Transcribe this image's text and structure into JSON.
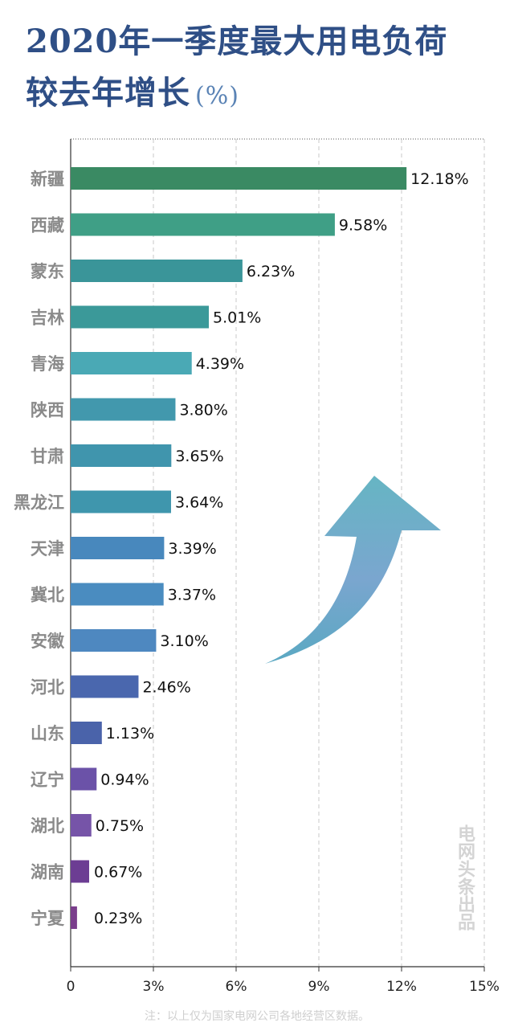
{
  "title_line1": "2020年一季度最大用电负荷",
  "title_line2": "较去年增长",
  "title_unit": "(%)",
  "note": "注：以上仅为国家电网公司各地经营区数据。",
  "watermark": "电网头条出品",
  "chart_data": {
    "type": "bar",
    "orientation": "horizontal",
    "categories": [
      "新疆",
      "西藏",
      "蒙东",
      "吉林",
      "青海",
      "陕西",
      "甘肃",
      "黑龙江",
      "天津",
      "冀北",
      "安徽",
      "河北",
      "山东",
      "辽宁",
      "湖北",
      "湖南",
      "宁夏"
    ],
    "values": [
      12.18,
      9.58,
      6.23,
      5.01,
      4.39,
      3.8,
      3.65,
      3.64,
      3.39,
      3.37,
      3.1,
      2.46,
      1.13,
      0.94,
      0.75,
      0.67,
      0.23
    ],
    "value_labels": [
      "12.18%",
      "9.58%",
      "6.23%",
      "5.01%",
      "4.39%",
      "3.80%",
      "3.65%",
      "3.64%",
      "3.39%",
      "3.37%",
      "3.10%",
      "2.46%",
      "1.13%",
      "0.94%",
      "0.75%",
      "0.67%",
      "0.23%"
    ],
    "bar_colors": [
      "#3a8a63",
      "#3f9f86",
      "#3a9599",
      "#3b9999",
      "#4aa9b5",
      "#4298ad",
      "#4095ad",
      "#3f96ad",
      "#4888bd",
      "#4a8cc0",
      "#4e88c0",
      "#4a67ae",
      "#4a63aa",
      "#6b52a8",
      "#7654a8",
      "#6c3d93",
      "#7a3e8c"
    ],
    "xlim": [
      0,
      15
    ],
    "xticks": [
      0,
      3,
      6,
      9,
      12,
      15
    ],
    "xtick_labels": [
      "0",
      "3%",
      "6%",
      "9%",
      "12%",
      "15%"
    ],
    "grid": "vertical dashed"
  }
}
